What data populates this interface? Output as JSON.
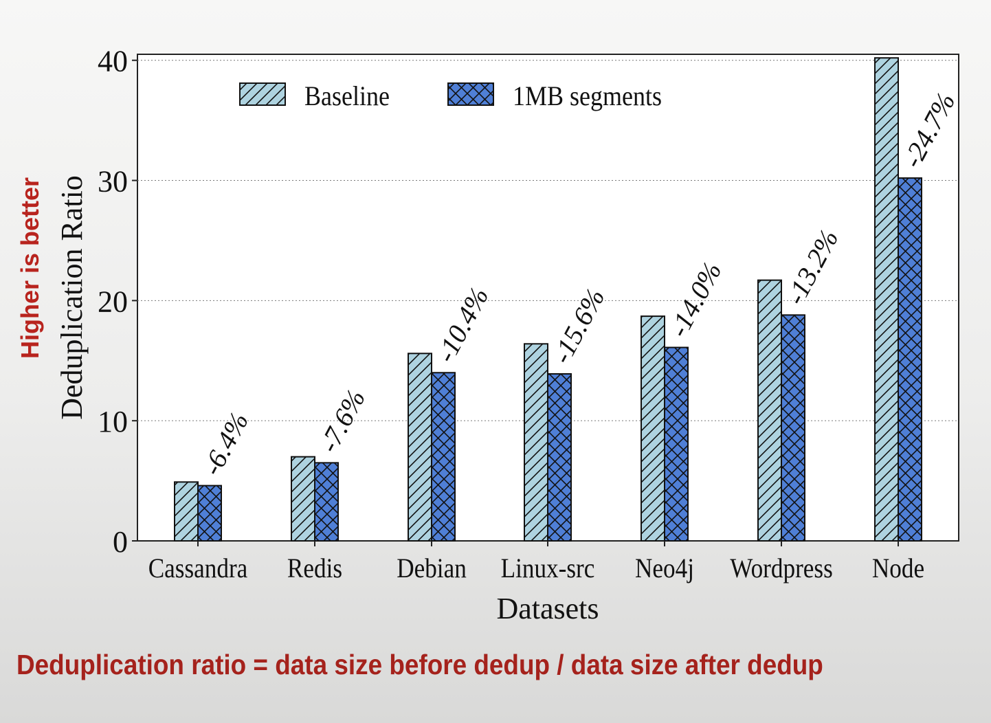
{
  "annotations": {
    "side_note": "Higher is better",
    "footer_note": "Deduplication ratio = data size before dedup / data size after dedup"
  },
  "colors": {
    "baseline_fill": "#aed3e0",
    "segments_fill": "#4f7fd6",
    "note_red": "#b8241e"
  },
  "chart_data": {
    "type": "bar",
    "title": "",
    "xlabel": "Datasets",
    "ylabel": "Deduplication Ratio",
    "ylim": [
      0,
      40.5
    ],
    "yticks": [
      "0",
      "10",
      "20",
      "30",
      "40"
    ],
    "grid": "horizontal dotted",
    "legend_position": "top-left",
    "categories": [
      "Cassandra",
      "Redis",
      "Debian",
      "Linux-src",
      "Neo4j",
      "Wordpress",
      "Node"
    ],
    "series": [
      {
        "name": "Baseline",
        "hatch": "diagonal",
        "values": [
          4.9,
          7.0,
          15.6,
          16.4,
          18.7,
          21.7,
          40.2
        ]
      },
      {
        "name": "1MB segments",
        "hatch": "crosshatch",
        "values": [
          4.6,
          6.5,
          14.0,
          13.9,
          16.1,
          18.8,
          30.2
        ]
      }
    ],
    "bar_labels": [
      "-6.4%",
      "-7.6%",
      "-10.4%",
      "-15.6%",
      "-14.0%",
      "-13.2%",
      "-24.7%"
    ]
  }
}
